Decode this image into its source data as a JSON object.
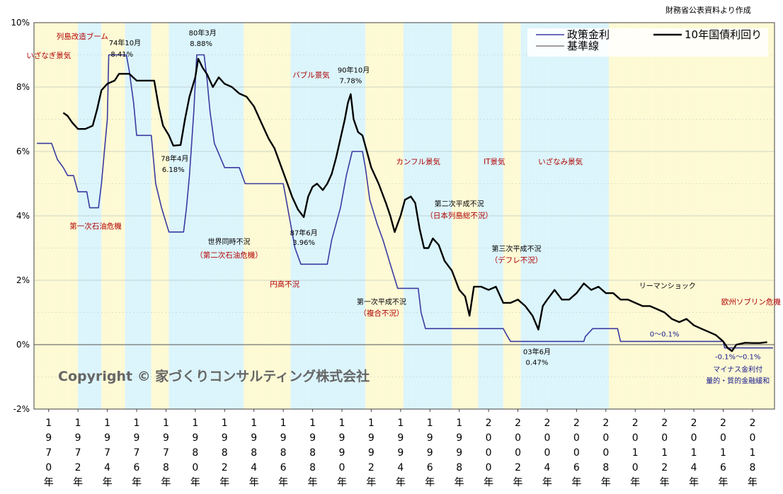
{
  "source_note": "財務省公表資料より作成",
  "chart_data": {
    "type": "line",
    "ylim": [
      -2,
      10
    ],
    "y_ticks": [
      "10%",
      "8%",
      "6%",
      "4%",
      "2%",
      "0%",
      "-2%"
    ],
    "x_tick_years": [
      1970,
      1972,
      1974,
      1976,
      1978,
      1980,
      1982,
      1984,
      1986,
      1988,
      1990,
      1992,
      1994,
      1996,
      1998,
      2000,
      2002,
      2004,
      2006,
      2008,
      2010,
      2012,
      2014,
      2016,
      2018
    ],
    "x_ticks": [
      "1970年",
      "1972年",
      "1974年",
      "1976年",
      "1978年",
      "1980年",
      "1982年",
      "1984年",
      "1986年",
      "1988年",
      "1990年",
      "1992年",
      "1994年",
      "1996年",
      "1998年",
      "2000年",
      "2002年",
      "2004年",
      "2006年",
      "2008年",
      "2010年",
      "2012年",
      "2014年",
      "2016年",
      "2018年"
    ],
    "legend": {
      "placement": "top-right",
      "items": [
        "政策金利",
        "基準線",
        "10年国債利回り"
      ]
    },
    "series": [
      {
        "name": "政策金利",
        "color": "#3a3aa0",
        "points": [
          [
            1969.2,
            6.25
          ],
          [
            1970.2,
            6.25
          ],
          [
            1970.6,
            5.75
          ],
          [
            1971.0,
            5.5
          ],
          [
            1971.3,
            5.25
          ],
          [
            1971.7,
            5.25
          ],
          [
            1972.0,
            4.75
          ],
          [
            1972.6,
            4.75
          ],
          [
            1972.8,
            4.25
          ],
          [
            1973.4,
            4.25
          ],
          [
            1973.6,
            5.0
          ],
          [
            1973.8,
            6.0
          ],
          [
            1974.0,
            7.0
          ],
          [
            1974.1,
            9.0
          ],
          [
            1975.3,
            9.0
          ],
          [
            1975.5,
            8.5
          ],
          [
            1975.8,
            7.5
          ],
          [
            1976.0,
            6.5
          ],
          [
            1977.0,
            6.5
          ],
          [
            1977.3,
            5.0
          ],
          [
            1977.7,
            4.25
          ],
          [
            1978.2,
            3.5
          ],
          [
            1979.2,
            3.5
          ],
          [
            1979.4,
            4.25
          ],
          [
            1979.6,
            5.25
          ],
          [
            1979.9,
            7.25
          ],
          [
            1980.1,
            9.0
          ],
          [
            1980.6,
            9.0
          ],
          [
            1980.8,
            8.25
          ],
          [
            1981.0,
            7.25
          ],
          [
            1981.3,
            6.25
          ],
          [
            1982.0,
            5.5
          ],
          [
            1983.0,
            5.5
          ],
          [
            1983.4,
            5.0
          ],
          [
            1985.0,
            5.0
          ],
          [
            1986.0,
            5.0
          ],
          [
            1986.2,
            4.5
          ],
          [
            1986.4,
            4.0
          ],
          [
            1986.8,
            3.0
          ],
          [
            1987.2,
            2.5
          ],
          [
            1989.0,
            2.5
          ],
          [
            1989.3,
            3.25
          ],
          [
            1989.6,
            3.75
          ],
          [
            1989.9,
            4.25
          ],
          [
            1990.3,
            5.25
          ],
          [
            1990.7,
            6.0
          ],
          [
            1991.4,
            6.0
          ],
          [
            1991.6,
            5.5
          ],
          [
            1991.9,
            4.5
          ],
          [
            1992.4,
            3.75
          ],
          [
            1992.8,
            3.25
          ],
          [
            1993.3,
            2.5
          ],
          [
            1993.8,
            1.75
          ],
          [
            1995.2,
            1.75
          ],
          [
            1995.4,
            1.0
          ],
          [
            1995.7,
            0.5
          ],
          [
            2001.0,
            0.5
          ],
          [
            2001.3,
            0.25
          ],
          [
            2001.5,
            0.1
          ],
          [
            2006.5,
            0.1
          ],
          [
            2006.6,
            0.25
          ],
          [
            2007.1,
            0.5
          ],
          [
            2008.8,
            0.5
          ],
          [
            2008.9,
            0.3
          ],
          [
            2009.0,
            0.1
          ],
          [
            2016.0,
            0.1
          ],
          [
            2016.1,
            -0.1
          ],
          [
            2019.4,
            -0.1
          ]
        ]
      },
      {
        "name": "基準線",
        "color": "#666666",
        "points": [
          [
            1969.0,
            0
          ],
          [
            2019.5,
            0
          ]
        ]
      },
      {
        "name": "10年国債利回り",
        "color": "#000000",
        "points": [
          [
            1971.0,
            7.2
          ],
          [
            1971.3,
            7.1
          ],
          [
            1971.6,
            6.9
          ],
          [
            1972.0,
            6.7
          ],
          [
            1972.5,
            6.7
          ],
          [
            1973.0,
            6.8
          ],
          [
            1973.3,
            7.3
          ],
          [
            1973.6,
            7.9
          ],
          [
            1974.0,
            8.1
          ],
          [
            1974.5,
            8.2
          ],
          [
            1974.8,
            8.41
          ],
          [
            1975.5,
            8.41
          ],
          [
            1976.0,
            8.2
          ],
          [
            1976.6,
            8.2
          ],
          [
            1977.2,
            8.2
          ],
          [
            1977.5,
            7.4
          ],
          [
            1977.8,
            6.8
          ],
          [
            1978.2,
            6.5
          ],
          [
            1978.5,
            6.18
          ],
          [
            1979.0,
            6.2
          ],
          [
            1979.3,
            7.0
          ],
          [
            1979.6,
            7.7
          ],
          [
            1980.0,
            8.3
          ],
          [
            1980.2,
            8.88
          ],
          [
            1980.5,
            8.6
          ],
          [
            1980.8,
            8.4
          ],
          [
            1981.2,
            8.0
          ],
          [
            1981.6,
            8.3
          ],
          [
            1982.0,
            8.1
          ],
          [
            1982.5,
            8.0
          ],
          [
            1983.0,
            7.8
          ],
          [
            1983.5,
            7.7
          ],
          [
            1984.0,
            7.4
          ],
          [
            1984.5,
            6.9
          ],
          [
            1985.0,
            6.4
          ],
          [
            1985.4,
            6.1
          ],
          [
            1985.8,
            5.6
          ],
          [
            1986.2,
            5.1
          ],
          [
            1986.6,
            4.6
          ],
          [
            1987.0,
            4.2
          ],
          [
            1987.4,
            3.96
          ],
          [
            1987.7,
            4.6
          ],
          [
            1988.0,
            4.9
          ],
          [
            1988.3,
            5.0
          ],
          [
            1988.7,
            4.8
          ],
          [
            1989.0,
            5.0
          ],
          [
            1989.3,
            5.3
          ],
          [
            1989.6,
            5.8
          ],
          [
            1989.9,
            6.4
          ],
          [
            1990.2,
            7.0
          ],
          [
            1990.4,
            7.5
          ],
          [
            1990.6,
            7.78
          ],
          [
            1990.8,
            7.0
          ],
          [
            1991.1,
            6.6
          ],
          [
            1991.4,
            6.5
          ],
          [
            1991.7,
            6.0
          ],
          [
            1992.0,
            5.5
          ],
          [
            1992.5,
            5.0
          ],
          [
            1993.0,
            4.4
          ],
          [
            1993.3,
            4.0
          ],
          [
            1993.6,
            3.5
          ],
          [
            1994.0,
            4.0
          ],
          [
            1994.3,
            4.5
          ],
          [
            1994.7,
            4.6
          ],
          [
            1995.0,
            4.4
          ],
          [
            1995.3,
            3.6
          ],
          [
            1995.6,
            3.0
          ],
          [
            1995.9,
            3.0
          ],
          [
            1996.2,
            3.3
          ],
          [
            1996.6,
            3.1
          ],
          [
            1997.0,
            2.6
          ],
          [
            1997.5,
            2.3
          ],
          [
            1998.0,
            1.7
          ],
          [
            1998.4,
            1.5
          ],
          [
            1998.7,
            0.9
          ],
          [
            1999.0,
            1.8
          ],
          [
            1999.5,
            1.8
          ],
          [
            2000.0,
            1.7
          ],
          [
            2000.5,
            1.8
          ],
          [
            2001.0,
            1.3
          ],
          [
            2001.5,
            1.3
          ],
          [
            2002.0,
            1.4
          ],
          [
            2002.5,
            1.2
          ],
          [
            2003.0,
            0.9
          ],
          [
            2003.4,
            0.47
          ],
          [
            2003.7,
            1.2
          ],
          [
            2004.0,
            1.4
          ],
          [
            2004.5,
            1.7
          ],
          [
            2005.0,
            1.4
          ],
          [
            2005.5,
            1.4
          ],
          [
            2006.0,
            1.6
          ],
          [
            2006.5,
            1.9
          ],
          [
            2007.0,
            1.7
          ],
          [
            2007.5,
            1.8
          ],
          [
            2008.0,
            1.6
          ],
          [
            2008.5,
            1.6
          ],
          [
            2009.0,
            1.4
          ],
          [
            2009.5,
            1.4
          ],
          [
            2010.0,
            1.3
          ],
          [
            2010.5,
            1.2
          ],
          [
            2011.0,
            1.2
          ],
          [
            2011.5,
            1.1
          ],
          [
            2012.0,
            1.0
          ],
          [
            2012.5,
            0.8
          ],
          [
            2013.0,
            0.7
          ],
          [
            2013.5,
            0.8
          ],
          [
            2014.0,
            0.6
          ],
          [
            2014.5,
            0.5
          ],
          [
            2015.0,
            0.4
          ],
          [
            2015.5,
            0.3
          ],
          [
            2016.0,
            0.1
          ],
          [
            2016.3,
            -0.1
          ],
          [
            2016.6,
            -0.2
          ],
          [
            2016.9,
            0.0
          ],
          [
            2017.5,
            0.06
          ],
          [
            2018.0,
            0.05
          ],
          [
            2018.5,
            0.05
          ],
          [
            2019.0,
            0.08
          ]
        ]
      }
    ],
    "phase_bands": [
      {
        "from": 1969.0,
        "to": 1969.5,
        "color": "#fdf9d2"
      },
      {
        "from": 1969.5,
        "to": 1970.6,
        "color": "#fdf9d2"
      },
      {
        "from": 1970.6,
        "to": 1972.0,
        "color": "#fdf9d2"
      },
      {
        "from": 1972.0,
        "to": 1973.6,
        "color": "#d9f4fb"
      },
      {
        "from": 1973.6,
        "to": 1975.2,
        "color": "#fdf9d2"
      },
      {
        "from": 1975.2,
        "to": 1977.0,
        "color": "#d9f4fb"
      },
      {
        "from": 1977.0,
        "to": 1978.2,
        "color": "#fdf9d2"
      },
      {
        "from": 1978.2,
        "to": 1980.2,
        "color": "#d9f4fb"
      },
      {
        "from": 1980.2,
        "to": 1983.3,
        "color": "#d9f4fb"
      },
      {
        "from": 1983.3,
        "to": 1986.5,
        "color": "#fdf9d2"
      },
      {
        "from": 1986.5,
        "to": 1991.6,
        "color": "#d9f4fb"
      },
      {
        "from": 1991.6,
        "to": 1994.2,
        "color": "#fdf9d2"
      },
      {
        "from": 1994.2,
        "to": 1997.5,
        "color": "#d9f4fb"
      },
      {
        "from": 1997.5,
        "to": 1999.3,
        "color": "#fdf9d2"
      },
      {
        "from": 1999.3,
        "to": 2001.0,
        "color": "#d9f4fb"
      },
      {
        "from": 2001.0,
        "to": 2002.2,
        "color": "#fdf9d2"
      },
      {
        "from": 2002.2,
        "to": 2008.2,
        "color": "#d9f4fb"
      },
      {
        "from": 2008.2,
        "to": 2019.5,
        "color": "#fdf9d2"
      }
    ],
    "annotations": [
      {
        "text": "いざなぎ景気",
        "x": 1970.0,
        "y": 8.9,
        "style": "red"
      },
      {
        "text": "列島改造ブーム",
        "x": 1972.3,
        "y": 9.5,
        "style": "red"
      },
      {
        "text": "74年10月",
        "x": 1975.2,
        "y": 9.3,
        "style": "blk"
      },
      {
        "text": "8.41%",
        "x": 1975.0,
        "y": 8.95,
        "style": "blk"
      },
      {
        "text": "80年3月",
        "x": 1980.5,
        "y": 9.6,
        "style": "blk"
      },
      {
        "text": "8.88%",
        "x": 1980.4,
        "y": 9.27,
        "style": "blk"
      },
      {
        "text": "バブル景気",
        "x": 1987.9,
        "y": 8.3,
        "style": "red"
      },
      {
        "text": "90年10月",
        "x": 1990.8,
        "y": 8.45,
        "style": "blk"
      },
      {
        "text": "7.78%",
        "x": 1990.6,
        "y": 8.12,
        "style": "blk"
      },
      {
        "text": "78年4月",
        "x": 1978.6,
        "y": 5.7,
        "style": "blk"
      },
      {
        "text": "6.18%",
        "x": 1978.5,
        "y": 5.36,
        "style": "blk"
      },
      {
        "text": "第一次石油危機",
        "x": 1973.2,
        "y": 3.6,
        "style": "red"
      },
      {
        "text": "世界同時不況",
        "x": 1982.3,
        "y": 3.12,
        "style": "blk"
      },
      {
        "text": "（第二次石油危機）",
        "x": 1982.3,
        "y": 2.7,
        "style": "red"
      },
      {
        "text": "87年6月",
        "x": 1987.4,
        "y": 3.4,
        "style": "blk"
      },
      {
        "text": "3.96%",
        "x": 1987.4,
        "y": 3.1,
        "style": "blk"
      },
      {
        "text": "円高不況",
        "x": 1986.1,
        "y": 1.8,
        "style": "red"
      },
      {
        "text": "カンフル景気",
        "x": 1995.2,
        "y": 5.6,
        "style": "red"
      },
      {
        "text": "IT景気",
        "x": 2000.4,
        "y": 5.6,
        "style": "red"
      },
      {
        "text": "いざなみ景気",
        "x": 2004.9,
        "y": 5.6,
        "style": "red"
      },
      {
        "text": "第二次平成不況",
        "x": 1998.0,
        "y": 4.3,
        "style": "blk"
      },
      {
        "text": "（日本列島総不況）",
        "x": 1998.0,
        "y": 3.93,
        "style": "red"
      },
      {
        "text": "第三次平成不況",
        "x": 2001.9,
        "y": 2.9,
        "style": "blk"
      },
      {
        "text": "（デフレ不況）",
        "x": 2001.9,
        "y": 2.55,
        "style": "red"
      },
      {
        "text": "第一次平成不況",
        "x": 1992.7,
        "y": 1.25,
        "style": "blk"
      },
      {
        "text": "（複合不況）",
        "x": 1992.7,
        "y": 0.9,
        "style": "red"
      },
      {
        "text": "リーマンショック",
        "x": 2012.2,
        "y": 1.75,
        "style": "blk"
      },
      {
        "text": "欧州ソブリン危機",
        "x": 2017.9,
        "y": 1.25,
        "style": "red"
      },
      {
        "text": "0～0.1%",
        "x": 2012.0,
        "y": 0.25,
        "style": "blue"
      },
      {
        "text": "03年6月",
        "x": 2003.3,
        "y": -0.3,
        "style": "blk"
      },
      {
        "text": "0.47%",
        "x": 2003.3,
        "y": -0.63,
        "style": "blk"
      },
      {
        "text": "-0.1%～0.1%",
        "x": 2017.0,
        "y": -0.45,
        "style": "blue"
      },
      {
        "text": "マイナス金利付",
        "x": 2017.0,
        "y": -0.85,
        "style": "blue"
      },
      {
        "text": "量的・質的金融緩和",
        "x": 2017.0,
        "y": -1.2,
        "style": "blue"
      }
    ],
    "copyright": "Copyright © 家づくりコンサルティング株式会社"
  }
}
